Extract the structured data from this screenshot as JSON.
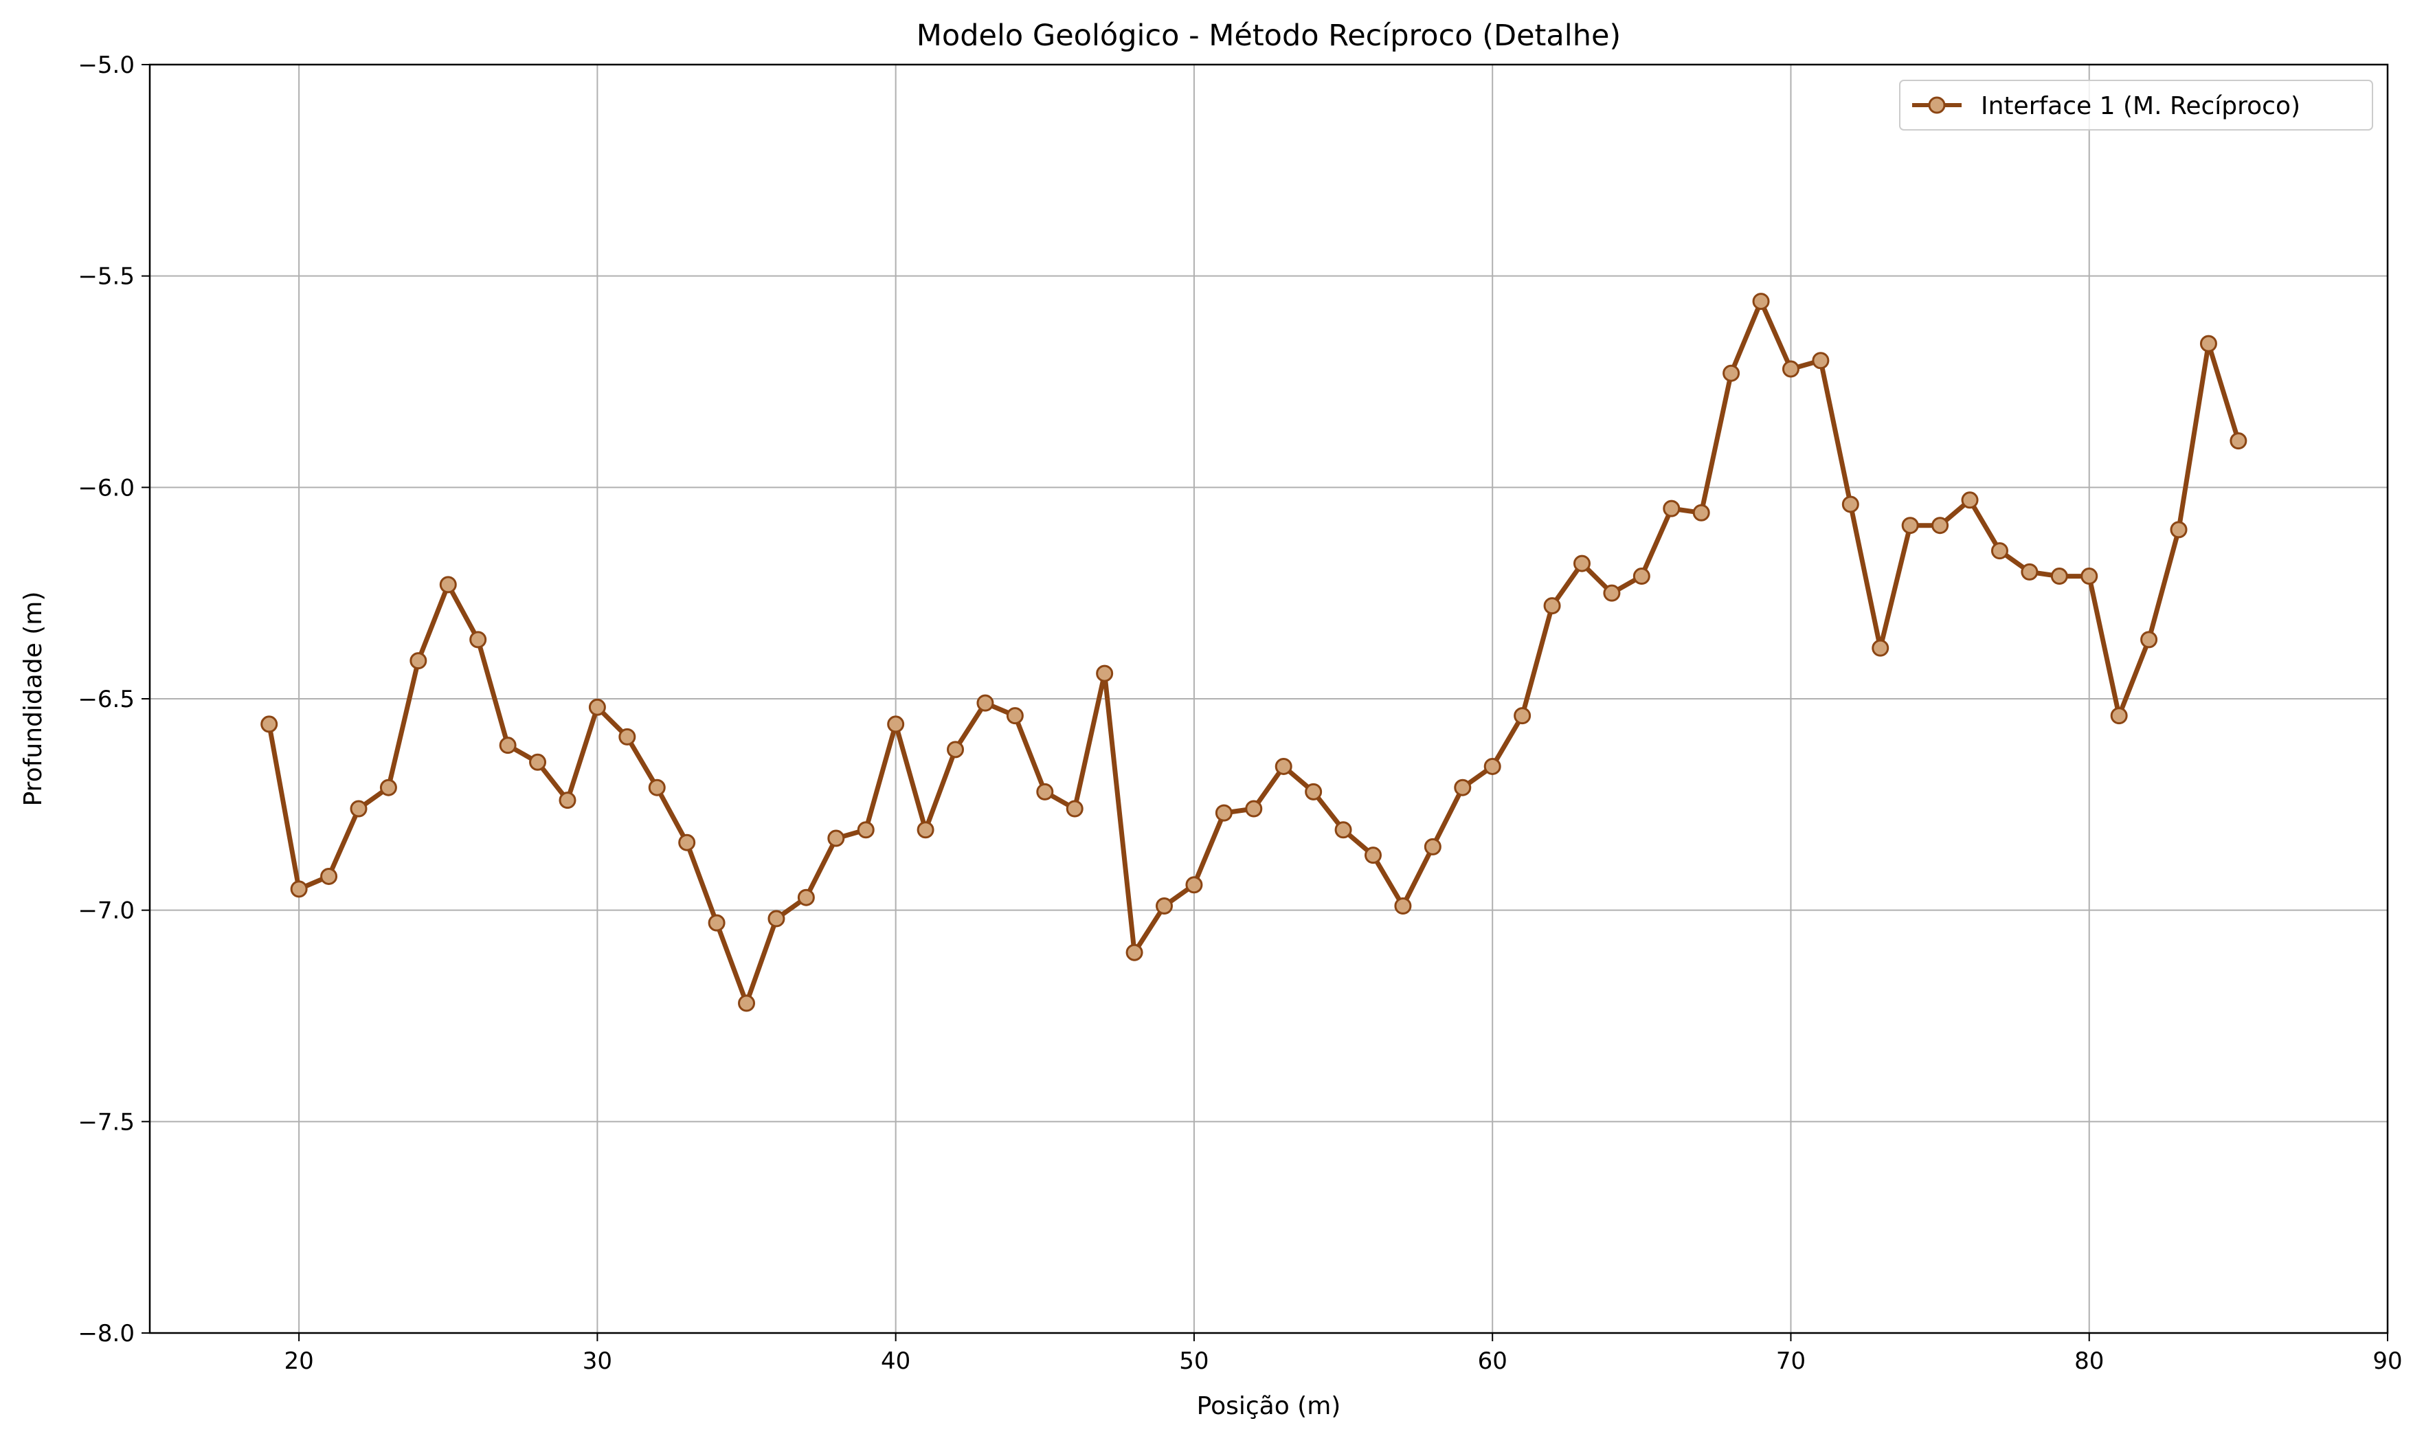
{
  "chart_data": {
    "type": "line",
    "title": "Modelo Geológico - Método Recíproco (Detalhe)",
    "xlabel": "Posição (m)",
    "ylabel": "Profundidade (m)",
    "xlim": [
      15,
      90
    ],
    "ylim": [
      -8.0,
      -5.0
    ],
    "xticks": [
      20,
      30,
      40,
      50,
      60,
      70,
      80,
      90
    ],
    "xtick_labels": [
      "20",
      "30",
      "40",
      "50",
      "60",
      "70",
      "80",
      "90"
    ],
    "yticks": [
      -8.0,
      -7.5,
      -7.0,
      -6.5,
      -6.0,
      -5.5,
      -5.0
    ],
    "ytick_labels": [
      "−8.0",
      "−7.5",
      "−7.0",
      "−6.5",
      "−6.0",
      "−5.5",
      "−5.0"
    ],
    "grid": true,
    "legend_position": "top-right",
    "series": [
      {
        "name": "Interface 1 (M. Recíproco)",
        "color": "#8B4513",
        "marker_fill": "#D2A57A",
        "x": [
          19,
          20,
          21,
          22,
          23,
          24,
          25,
          26,
          27,
          28,
          29,
          30,
          31,
          32,
          33,
          34,
          35,
          36,
          37,
          38,
          39,
          40,
          41,
          42,
          43,
          44,
          45,
          46,
          47,
          48,
          49,
          50,
          51,
          52,
          53,
          54,
          55,
          56,
          57,
          58,
          59,
          60,
          61,
          62,
          63,
          64,
          65,
          66,
          67,
          68,
          69,
          70,
          71,
          72,
          73,
          74,
          75,
          76,
          77,
          78,
          79,
          80,
          81,
          82,
          83,
          84,
          85
        ],
        "y": [
          -6.56,
          -6.95,
          -6.92,
          -6.76,
          -6.71,
          -6.41,
          -6.23,
          -6.36,
          -6.61,
          -6.65,
          -6.74,
          -6.52,
          -6.59,
          -6.71,
          -6.84,
          -7.03,
          -7.22,
          -7.02,
          -6.97,
          -6.83,
          -6.81,
          -6.56,
          -6.81,
          -6.62,
          -6.51,
          -6.54,
          -6.72,
          -6.76,
          -6.44,
          -7.1,
          -6.99,
          -6.94,
          -6.77,
          -6.76,
          -6.66,
          -6.72,
          -6.81,
          -6.87,
          -6.99,
          -6.85,
          -6.71,
          -6.66,
          -6.54,
          -6.28,
          -6.18,
          -6.25,
          -6.21,
          -6.05,
          -6.06,
          -5.73,
          -5.56,
          -5.72,
          -5.7,
          -6.04,
          -6.38,
          -6.09,
          -6.09,
          -6.03,
          -6.15,
          -6.2,
          -6.21,
          -6.21,
          -6.54,
          -6.36,
          -6.1,
          -5.66,
          -5.89
        ]
      }
    ]
  }
}
